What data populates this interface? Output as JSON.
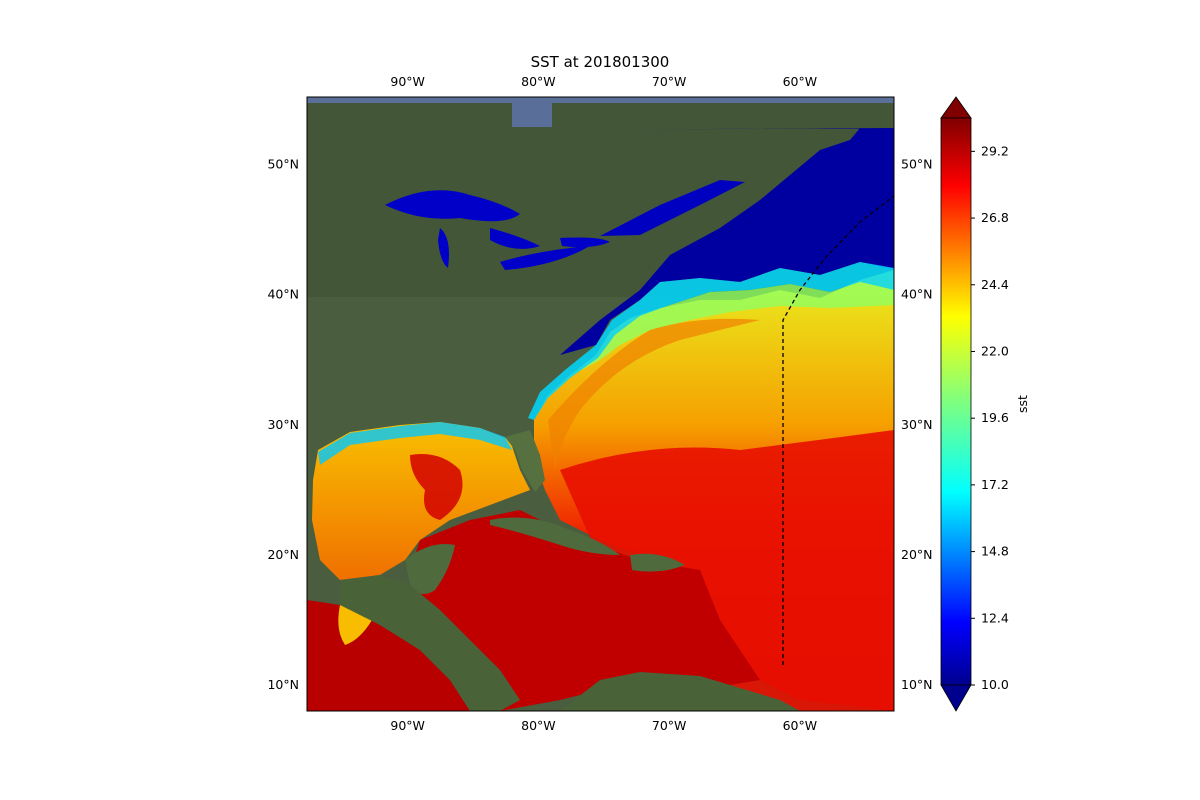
{
  "title": "SST at 201801300",
  "map": {
    "lon_ticks": [
      "90°W",
      "80°W",
      "70°W",
      "60°W"
    ],
    "lat_ticks": [
      "50°N",
      "40°N",
      "30°N",
      "20°N",
      "10°N"
    ],
    "lon_values": [
      -90,
      -80,
      -70,
      -60
    ],
    "lat_values": [
      50,
      40,
      30,
      20,
      10
    ],
    "extent": {
      "lon_min": -97.7,
      "lon_max": -52.8,
      "lat_min": 8.0,
      "lat_max": 55.2
    },
    "basemap": "satellite imagery",
    "colormap": "jet",
    "boundary_line": "dashed black"
  },
  "colorbar": {
    "label": "sst",
    "min": 10.0,
    "max": 30.4,
    "extend": "both",
    "tick_labels": [
      "10.0",
      "12.4",
      "14.8",
      "17.2",
      "19.6",
      "22.0",
      "24.4",
      "26.8",
      "29.2"
    ],
    "tick_values": [
      10.0,
      12.4,
      14.8,
      17.2,
      19.6,
      22.0,
      24.4,
      26.8,
      29.2
    ]
  },
  "colors": {
    "land": "#4b5e3f",
    "cold_water": "#00009a",
    "warm_water": "#c80000"
  }
}
